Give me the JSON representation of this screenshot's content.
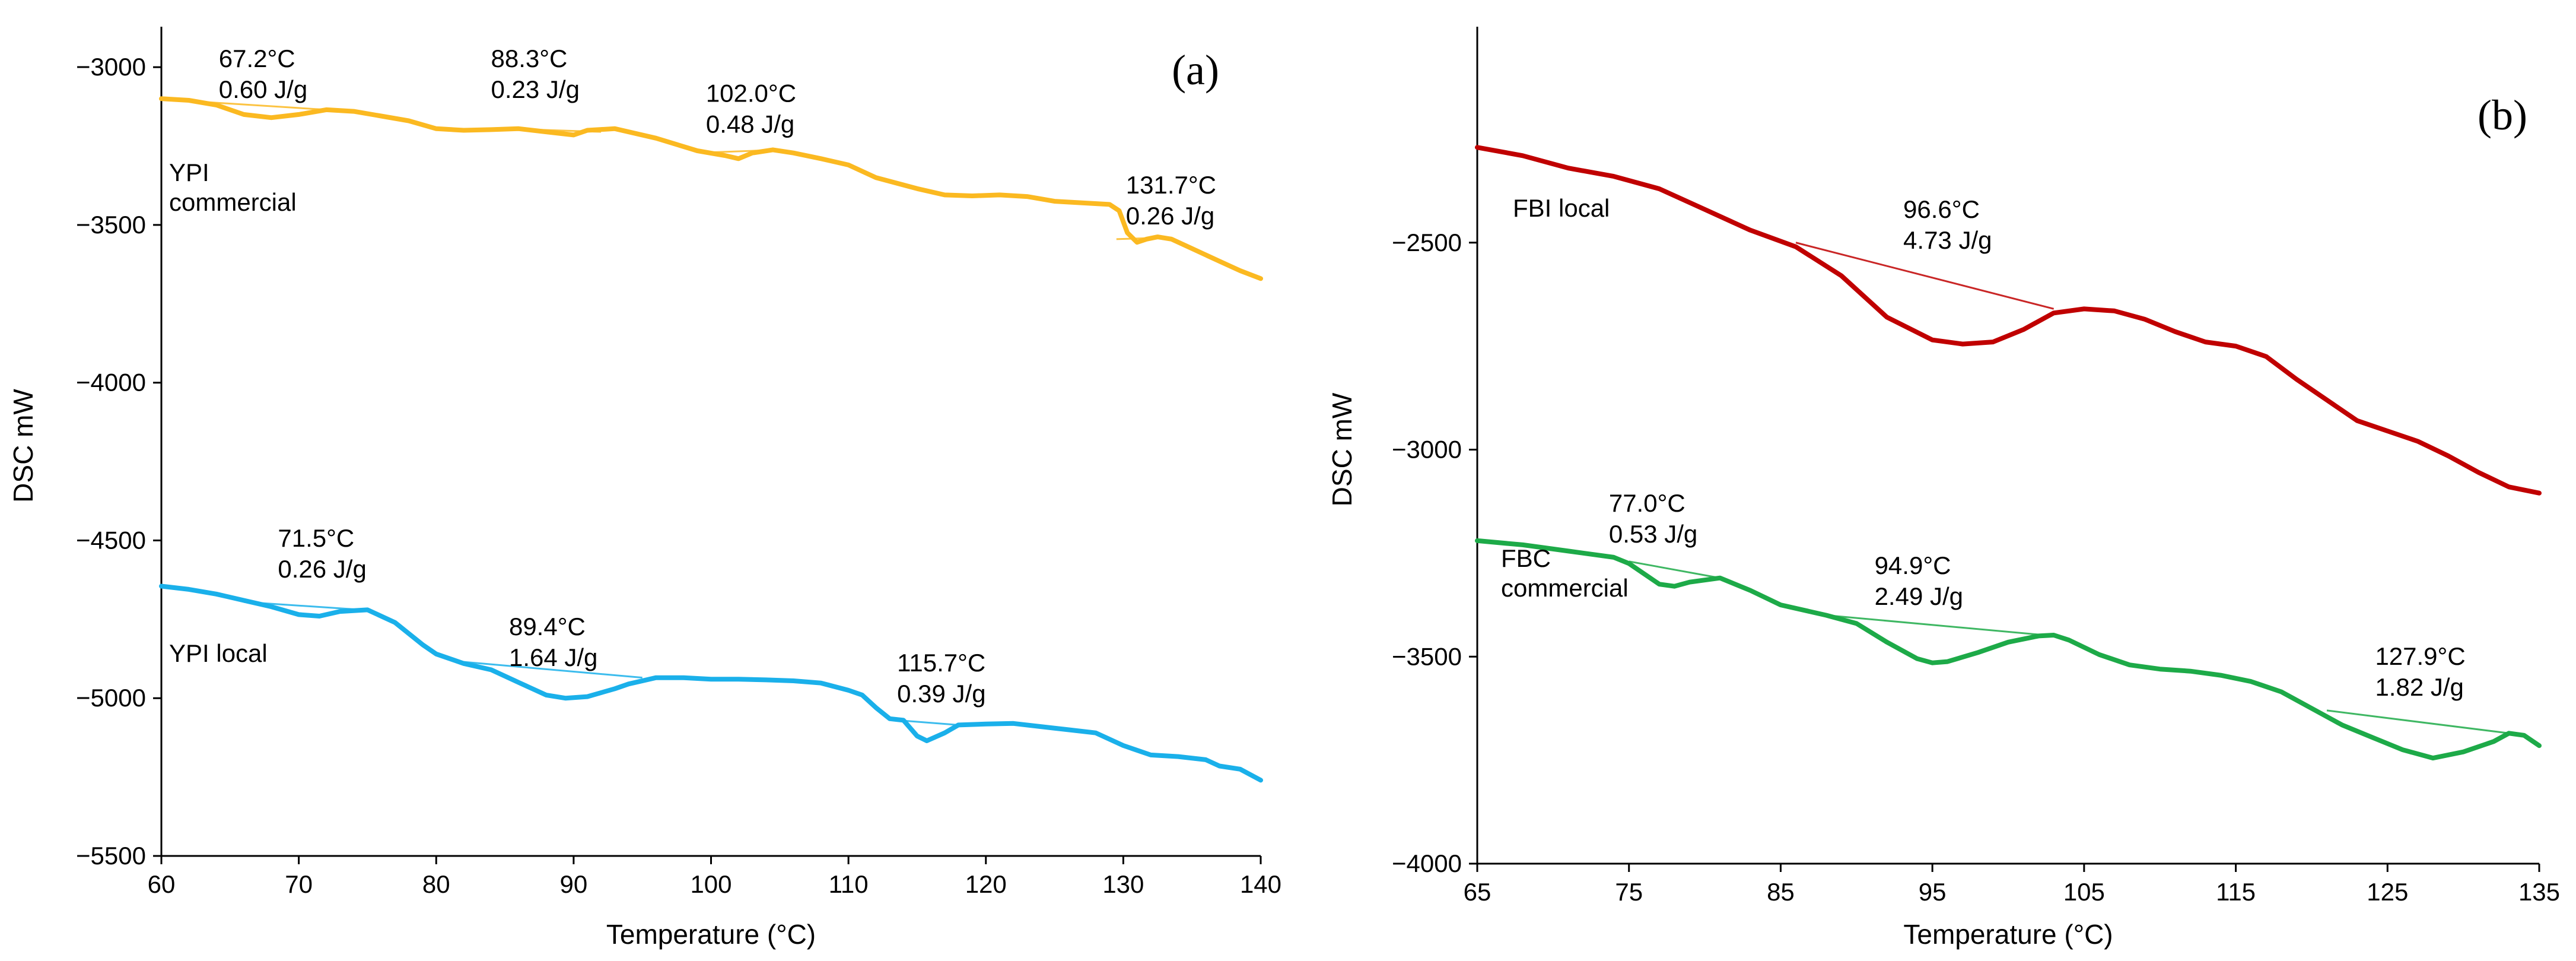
{
  "chart_data": [
    {
      "type": "line",
      "panel_label": "(a)",
      "xlabel": "Temperature (°C)",
      "ylabel": "DSC mW",
      "xlim": [
        60,
        140
      ],
      "ylim": [
        -5500,
        -2900
      ],
      "x_ticks": [
        "60",
        "70",
        "80",
        "90",
        "100",
        "110",
        "120",
        "130",
        "140"
      ],
      "y_ticks": [
        "−3000",
        "−3500",
        "−4000",
        "−4500",
        "−5000",
        "−5500"
      ],
      "series": [
        {
          "name": "YPI commercial",
          "label_lines": [
            "YPI",
            "commercial"
          ],
          "color": "#FBB921",
          "points": [
            [
              60,
              -3100
            ],
            [
              62,
              -3105
            ],
            [
              64,
              -3120
            ],
            [
              66,
              -3150
            ],
            [
              68,
              -3160
            ],
            [
              70,
              -3150
            ],
            [
              72,
              -3135
            ],
            [
              74,
              -3140
            ],
            [
              76,
              -3155
            ],
            [
              78,
              -3170
            ],
            [
              80,
              -3195
            ],
            [
              82,
              -3200
            ],
            [
              84,
              -3198
            ],
            [
              86,
              -3195
            ],
            [
              88,
              -3205
            ],
            [
              90,
              -3215
            ],
            [
              91,
              -3200
            ],
            [
              93,
              -3195
            ],
            [
              96,
              -3225
            ],
            [
              99,
              -3265
            ],
            [
              101,
              -3280
            ],
            [
              102,
              -3290
            ],
            [
              103,
              -3272
            ],
            [
              104.5,
              -3262
            ],
            [
              106,
              -3272
            ],
            [
              108,
              -3290
            ],
            [
              110,
              -3310
            ],
            [
              112,
              -3350
            ],
            [
              115,
              -3385
            ],
            [
              117,
              -3405
            ],
            [
              119,
              -3408
            ],
            [
              121,
              -3405
            ],
            [
              123,
              -3410
            ],
            [
              125,
              -3425
            ],
            [
              127,
              -3430
            ],
            [
              129,
              -3435
            ],
            [
              129.7,
              -3455
            ],
            [
              130.3,
              -3525
            ],
            [
              131,
              -3555
            ],
            [
              131.7,
              -3545
            ],
            [
              132.5,
              -3538
            ],
            [
              133.5,
              -3545
            ],
            [
              135,
              -3575
            ],
            [
              137,
              -3615
            ],
            [
              138.5,
              -3645
            ],
            [
              140,
              -3670
            ]
          ]
        },
        {
          "name": "YPI local",
          "label_lines": [
            "YPI local"
          ],
          "color": "#1AB0EA",
          "points": [
            [
              60,
              -4645
            ],
            [
              62,
              -4655
            ],
            [
              64,
              -4670
            ],
            [
              66,
              -4690
            ],
            [
              68,
              -4710
            ],
            [
              70,
              -4735
            ],
            [
              71.5,
              -4740
            ],
            [
              73,
              -4725
            ],
            [
              75,
              -4720
            ],
            [
              77,
              -4760
            ],
            [
              79,
              -4830
            ],
            [
              80,
              -4860
            ],
            [
              82,
              -4890
            ],
            [
              84,
              -4910
            ],
            [
              86,
              -4950
            ],
            [
              88,
              -4990
            ],
            [
              89.4,
              -5000
            ],
            [
              91,
              -4995
            ],
            [
              93,
              -4970
            ],
            [
              94,
              -4955
            ],
            [
              96,
              -4935
            ],
            [
              98,
              -4935
            ],
            [
              100,
              -4940
            ],
            [
              102,
              -4940
            ],
            [
              104,
              -4942
            ],
            [
              106,
              -4945
            ],
            [
              108,
              -4952
            ],
            [
              110,
              -4975
            ],
            [
              111,
              -4990
            ],
            [
              112,
              -5030
            ],
            [
              113,
              -5065
            ],
            [
              114,
              -5070
            ],
            [
              115,
              -5120
            ],
            [
              115.7,
              -5135
            ],
            [
              117,
              -5110
            ],
            [
              118,
              -5085
            ],
            [
              120,
              -5082
            ],
            [
              122,
              -5080
            ],
            [
              124,
              -5090
            ],
            [
              126,
              -5100
            ],
            [
              128,
              -5110
            ],
            [
              130,
              -5150
            ],
            [
              132,
              -5180
            ],
            [
              134,
              -5185
            ],
            [
              136,
              -5195
            ],
            [
              137,
              -5215
            ],
            [
              138.5,
              -5225
            ],
            [
              140,
              -5260
            ]
          ]
        }
      ],
      "baselines": [
        {
          "series": "YPI commercial",
          "color": "#FBB921",
          "points": [
            [
              63,
              -3110
            ],
            [
              72,
              -3135
            ]
          ]
        },
        {
          "series": "YPI commercial",
          "color": "#FBB921",
          "points": [
            [
              85,
              -3195
            ],
            [
              92,
              -3205
            ]
          ]
        },
        {
          "series": "YPI commercial",
          "color": "#FBB921",
          "points": [
            [
              100,
              -3270
            ],
            [
              105,
              -3262
            ]
          ]
        },
        {
          "series": "YPI commercial",
          "color": "#FBB921",
          "points": [
            [
              129.5,
              -3545
            ],
            [
              133.5,
              -3540
            ]
          ]
        },
        {
          "series": "YPI local",
          "color": "#1AB0EA",
          "points": [
            [
              66,
              -4695
            ],
            [
              74,
              -4718
            ]
          ]
        },
        {
          "series": "YPI local",
          "color": "#1AB0EA",
          "points": [
            [
              82,
              -4885
            ],
            [
              95,
              -4935
            ]
          ]
        },
        {
          "series": "YPI local",
          "color": "#1AB0EA",
          "points": [
            [
              113,
              -5068
            ],
            [
              118,
              -5085
            ]
          ]
        }
      ],
      "annotations": [
        {
          "x": 67.2,
          "y": -3000,
          "text": [
            "67.2°C",
            "0.60 J/g"
          ]
        },
        {
          "x": 88.3,
          "y": -3000,
          "text": [
            "88.3°C",
            "0.23 J/g"
          ]
        },
        {
          "x": 102.0,
          "y": -3110,
          "text": [
            "102.0°C",
            "0.48 J/g"
          ]
        },
        {
          "x": 131.7,
          "y": -3400,
          "text": [
            "131.7°C",
            "0.26 J/g"
          ]
        },
        {
          "x": 71.5,
          "y": -4520,
          "text": [
            "71.5°C",
            "0.26 J/g"
          ]
        },
        {
          "x": 89.4,
          "y": -4800,
          "text": [
            "89.4°C",
            "1.64 J/g"
          ]
        },
        {
          "x": 115.7,
          "y": -4915,
          "text": [
            "115.7°C",
            "0.39 J/g"
          ]
        }
      ]
    },
    {
      "type": "line",
      "panel_label": "(b)",
      "xlabel": "Temperature (°C)",
      "ylabel": "DSC mW",
      "xlim": [
        65,
        135
      ],
      "ylim": [
        -4000,
        -2000
      ],
      "x_ticks": [
        "65",
        "75",
        "85",
        "95",
        "105",
        "115",
        "125",
        "135"
      ],
      "y_ticks": [
        "−2500",
        "−3000",
        "−3500",
        "−4000"
      ],
      "series": [
        {
          "name": "FBI local",
          "label_lines": [
            "FBI local"
          ],
          "color": "#C00000",
          "points": [
            [
              65,
              -2270
            ],
            [
              68,
              -2290
            ],
            [
              71,
              -2320
            ],
            [
              74,
              -2340
            ],
            [
              77,
              -2370
            ],
            [
              80,
              -2420
            ],
            [
              83,
              -2470
            ],
            [
              86,
              -2510
            ],
            [
              89,
              -2580
            ],
            [
              92,
              -2680
            ],
            [
              95,
              -2735
            ],
            [
              97,
              -2745
            ],
            [
              99,
              -2740
            ],
            [
              101,
              -2710
            ],
            [
              103,
              -2670
            ],
            [
              105,
              -2660
            ],
            [
              107,
              -2665
            ],
            [
              109,
              -2685
            ],
            [
              111,
              -2715
            ],
            [
              113,
              -2740
            ],
            [
              115,
              -2750
            ],
            [
              117,
              -2775
            ],
            [
              119,
              -2830
            ],
            [
              121,
              -2880
            ],
            [
              123,
              -2930
            ],
            [
              125,
              -2955
            ],
            [
              127,
              -2980
            ],
            [
              129,
              -3015
            ],
            [
              131,
              -3055
            ],
            [
              133,
              -3090
            ],
            [
              135,
              -3105
            ]
          ]
        },
        {
          "name": "FBC commercial",
          "label_lines": [
            "FBC",
            "commercial"
          ],
          "color": "#1DAA48",
          "points": [
            [
              65,
              -3220
            ],
            [
              68,
              -3230
            ],
            [
              71,
              -3245
            ],
            [
              74,
              -3260
            ],
            [
              75,
              -3275
            ],
            [
              77,
              -3325
            ],
            [
              78,
              -3330
            ],
            [
              79,
              -3320
            ],
            [
              81,
              -3310
            ],
            [
              83,
              -3340
            ],
            [
              85,
              -3375
            ],
            [
              88,
              -3400
            ],
            [
              90,
              -3420
            ],
            [
              92,
              -3465
            ],
            [
              94,
              -3505
            ],
            [
              95,
              -3515
            ],
            [
              96,
              -3512
            ],
            [
              98,
              -3490
            ],
            [
              100,
              -3465
            ],
            [
              102,
              -3450
            ],
            [
              103,
              -3448
            ],
            [
              104,
              -3460
            ],
            [
              106,
              -3495
            ],
            [
              108,
              -3520
            ],
            [
              110,
              -3530
            ],
            [
              112,
              -3535
            ],
            [
              114,
              -3545
            ],
            [
              116,
              -3560
            ],
            [
              118,
              -3585
            ],
            [
              120,
              -3625
            ],
            [
              122,
              -3665
            ],
            [
              124,
              -3695
            ],
            [
              126,
              -3725
            ],
            [
              128,
              -3745
            ],
            [
              130,
              -3730
            ],
            [
              132,
              -3705
            ],
            [
              133,
              -3685
            ],
            [
              134,
              -3690
            ],
            [
              135,
              -3715
            ]
          ]
        }
      ],
      "baselines": [
        {
          "series": "FBI local",
          "color": "#C00000",
          "points": [
            [
              86,
              -2500
            ],
            [
              103,
              -2660
            ]
          ]
        },
        {
          "series": "FBC commercial",
          "color": "#1DAA48",
          "points": [
            [
              75,
              -3270
            ],
            [
              81,
              -3310
            ]
          ]
        },
        {
          "series": "FBC commercial",
          "color": "#1DAA48",
          "points": [
            [
              88,
              -3400
            ],
            [
              103,
              -3450
            ]
          ]
        },
        {
          "series": "FBC commercial",
          "color": "#1DAA48",
          "points": [
            [
              121,
              -3630
            ],
            [
              133,
              -3685
            ]
          ]
        }
      ],
      "annotations": [
        {
          "x": 96.6,
          "y": -2440,
          "text": [
            "96.6°C",
            "4.73 J/g"
          ]
        },
        {
          "x": 77.0,
          "y": -3150,
          "text": [
            "77.0°C",
            "0.53 J/g"
          ]
        },
        {
          "x": 94.9,
          "y": -3300,
          "text": [
            "94.9°C",
            "2.49 J/g"
          ]
        },
        {
          "x": 127.9,
          "y": -3520,
          "text": [
            "127.9°C",
            "1.82 J/g"
          ]
        }
      ]
    }
  ]
}
